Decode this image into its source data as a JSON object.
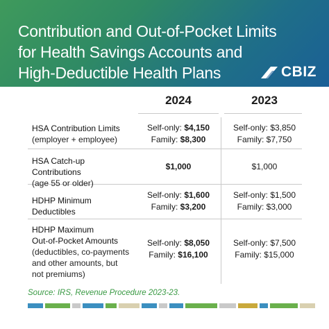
{
  "header": {
    "title_lines": [
      "Contribution and Out-of-Pocket Limits",
      "for Health Savings Accounts and",
      "High-Deductible Health Plans"
    ],
    "logo_text": "CBIZ"
  },
  "table": {
    "years": [
      "2024",
      "2023"
    ],
    "rows": [
      {
        "label": "HSA Contribution Limits",
        "sublabel": "(employer + employee)",
        "v2024": [
          "Self-only: ",
          "$4,150",
          "Family: ",
          "$8,300"
        ],
        "v2023": [
          "Self-only: $3,850",
          "Family: $7,750"
        ]
      },
      {
        "label": "HSA Catch-up Contributions",
        "sublabel": "(age 55 or older)",
        "v2024": [
          "$1,000"
        ],
        "v2023": [
          "$1,000"
        ]
      },
      {
        "label": "HDHP Minimum Deductibles",
        "sublabel": "",
        "v2024": [
          "Self-only: ",
          "$1,600",
          "Family: ",
          "$3,200"
        ],
        "v2023": [
          "Self-only: $1,500",
          "Family: $3,000"
        ]
      },
      {
        "label_lines": [
          "HDHP Maximum",
          "Out-of-Pocket Amounts"
        ],
        "sub_lines": [
          "(deductibles, co-payments",
          "and other amounts, but",
          "not  premiums)"
        ],
        "v2024": [
          "Self-only: ",
          "$8,050",
          "Family: ",
          "$16,100"
        ],
        "v2023": [
          "Self-only: $7,500",
          "Family: $15,000"
        ]
      }
    ]
  },
  "source": "Source: IRS, Revenue Procedure 2023-23.",
  "colors": {
    "header_gradient": [
      "#3f9a5c",
      "#1a5f96"
    ],
    "source_text": "#3a9a44",
    "footer_bars": [
      "#3b8fc0",
      "#6ab04c",
      "#c9c9c9",
      "#3b8fc0",
      "#6ab04c",
      "#d9d0b0",
      "#3b8fc0",
      "#c9c9c9",
      "#3b8fc0",
      "#6ab04c",
      "#c9c9c9",
      "#c9a93b",
      "#3b8fc0",
      "#6ab04c",
      "#d9d0b0"
    ]
  }
}
